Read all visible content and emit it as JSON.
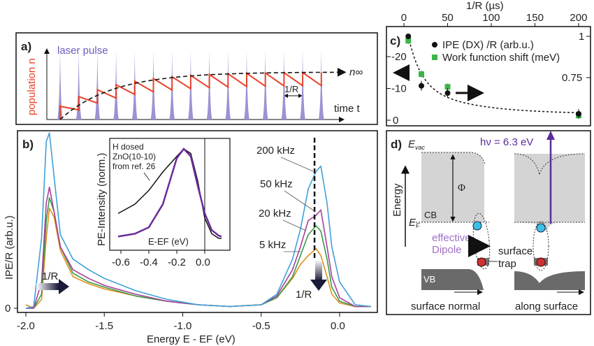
{
  "chart_data": [
    {
      "panel": "a)",
      "type": "line",
      "ylabel": "population n",
      "xlabel": "time t",
      "annotations": {
        "laser": "laser pulse",
        "period": "1/R",
        "asymptote": "n∞"
      },
      "pulse_count": 15,
      "colors": {
        "pulse": "#9b93d3",
        "population": "#e8432b",
        "asymptote": "#111111"
      }
    },
    {
      "panel": "b)",
      "type": "line",
      "xlabel": "Energy E - EF (eV)",
      "ylabel": "IPE/R (arb.u.)",
      "xlim": [
        -2.05,
        0.22
      ],
      "xticks": [
        "-2.0",
        "-1.5",
        "-1.0",
        "-0.5",
        "0.0"
      ],
      "yticks": [
        "0"
      ],
      "arrow_label": "1/R",
      "x": [
        -2.0,
        -1.95,
        -1.9,
        -1.87,
        -1.85,
        -1.82,
        -1.78,
        -1.7,
        -1.6,
        -1.5,
        -1.3,
        -1.1,
        -0.9,
        -0.7,
        -0.5,
        -0.4,
        -0.3,
        -0.25,
        -0.2,
        -0.15,
        -0.12,
        -0.08,
        -0.05,
        0.0,
        0.1,
        0.2
      ],
      "series": [
        {
          "name": "200 kHz",
          "color": "#3fa0d8",
          "values": [
            0,
            0.01,
            0.4,
            0.95,
            1.0,
            0.75,
            0.42,
            0.28,
            0.22,
            0.17,
            0.1,
            0.05,
            0.02,
            0.01,
            0.02,
            0.08,
            0.28,
            0.45,
            0.68,
            0.78,
            0.81,
            0.6,
            0.35,
            0.15,
            0.02,
            0.01
          ]
        },
        {
          "name": "50 kHz",
          "color": "#a8409a",
          "values": [
            0,
            0,
            0.15,
            0.6,
            0.69,
            0.55,
            0.35,
            0.22,
            0.17,
            0.13,
            0.08,
            0.04,
            0.02,
            0.01,
            0.02,
            0.07,
            0.22,
            0.35,
            0.5,
            0.53,
            0.56,
            0.35,
            0.18,
            0.06,
            0.01,
            0.01
          ]
        },
        {
          "name": "20 kHz",
          "color": "#3a9a48",
          "values": [
            0,
            0,
            0.08,
            0.5,
            0.63,
            0.55,
            0.35,
            0.2,
            0.15,
            0.12,
            0.07,
            0.04,
            0.02,
            0.01,
            0.02,
            0.06,
            0.18,
            0.3,
            0.42,
            0.47,
            0.44,
            0.28,
            0.12,
            0.04,
            0.01,
            0.01
          ]
        },
        {
          "name": "5 kHz",
          "color": "#e0901a",
          "values": [
            0.02,
            0,
            0.05,
            0.4,
            0.57,
            0.52,
            0.33,
            0.18,
            0.14,
            0.11,
            0.07,
            0.04,
            0.02,
            0.01,
            0.02,
            0.06,
            0.17,
            0.25,
            0.3,
            0.34,
            0.3,
            0.18,
            0.08,
            0.03,
            0.01,
            0.01
          ]
        }
      ],
      "marker_line_x": -0.16,
      "inset": {
        "ylabel": "PE-Intensity (norm.)",
        "xlabel": "E-EF (eV)",
        "xticks": [
          "-0.6",
          "-0.4",
          "-0.2",
          "0.0"
        ],
        "annotation": [
          "H dosed",
          "ZnO(10-10)",
          "from ref. 26"
        ],
        "series": [
          {
            "color": "#111111",
            "x": [
              -0.62,
              -0.5,
              -0.4,
              -0.3,
              -0.2,
              -0.15,
              -0.1,
              -0.05,
              0,
              0.05,
              0.1,
              0.12
            ],
            "values": [
              0.3,
              0.4,
              0.55,
              0.75,
              0.92,
              1.0,
              0.95,
              0.65,
              0.25,
              0.08,
              0.03,
              0.03
            ]
          },
          {
            "color": "#6a2c9a",
            "x": [
              -0.62,
              -0.5,
              -0.4,
              -0.3,
              -0.25,
              -0.2,
              -0.15,
              -0.1,
              -0.05,
              0,
              0.05,
              0.1,
              0.12
            ],
            "values": [
              0.05,
              0.08,
              0.15,
              0.4,
              0.65,
              0.9,
              1.0,
              0.92,
              0.6,
              0.3,
              0.12,
              0.06,
              0.05
            ]
          }
        ]
      }
    },
    {
      "panel": "c)",
      "type": "scatter",
      "xlabel_top": "1/R (µs)",
      "xticks": [
        "0",
        "50",
        "100",
        "150",
        "200"
      ],
      "yticks_left": [
        "-20",
        "-10",
        "0"
      ],
      "yticks_right": [
        "1",
        "0.75"
      ],
      "x": [
        5,
        20,
        50,
        200
      ],
      "series": [
        {
          "name": "IPE (DX) /R (arb.u.)",
          "color": "#111111",
          "axis": "right",
          "values": [
            1.0,
            0.7,
            0.656,
            0.53
          ]
        },
        {
          "name": "Work function shift (meV)",
          "color": "#3cb44b",
          "axis": "left",
          "values": [
            -25,
            -14.5,
            -10.5,
            -1.5
          ]
        }
      ]
    }
  ],
  "diagram_d": {
    "panel": "d)",
    "evac": "E",
    "evac_sub": "vac",
    "ef": "E",
    "ef_sub": "F",
    "phi": "Φ",
    "cb": "CB",
    "vb": "VB",
    "energy": "Energy",
    "photon": "hν = 6.3 eV",
    "dipole": [
      "effective",
      "Dipole"
    ],
    "trap": [
      "surface",
      "trap"
    ],
    "bottom_left": "surface normal",
    "bottom_right": "along surface"
  }
}
